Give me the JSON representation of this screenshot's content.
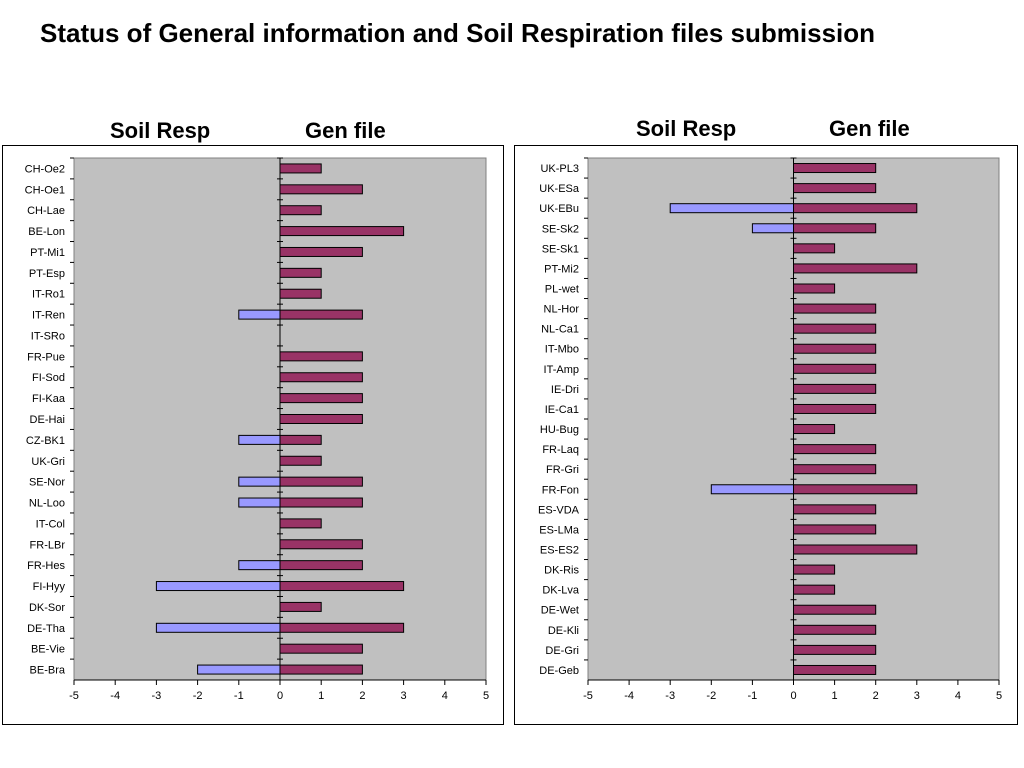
{
  "title": "Status of General information and Soil Respiration files submission",
  "colors": {
    "soil_resp": "#9999ff",
    "gen_file": "#993366",
    "plot_bg": "#c0c0c0"
  },
  "chart_data": [
    {
      "type": "bar",
      "orientation": "horizontal",
      "headers": [
        "Soil Resp",
        "Gen file"
      ],
      "xlim": [
        -5,
        5
      ],
      "xticks": [
        -5,
        -4,
        -3,
        -2,
        -1,
        0,
        1,
        2,
        3,
        4,
        5
      ],
      "categories": [
        "CH-Oe2",
        "CH-Oe1",
        "CH-Lae",
        "BE-Lon",
        "PT-Mi1",
        "PT-Esp",
        "IT-Ro1",
        "IT-Ren",
        "IT-SRo",
        "FR-Pue",
        "FI-Sod",
        "FI-Kaa",
        "DE-Hai",
        "CZ-BK1",
        "UK-Gri",
        "SE-Nor",
        "NL-Loo",
        "IT-Col",
        "FR-LBr",
        "FR-Hes",
        "FI-Hyy",
        "DK-Sor",
        "DE-Tha",
        "BE-Vie",
        "BE-Bra"
      ],
      "series": [
        {
          "key": "soil_resp",
          "values": [
            0,
            0,
            0,
            0,
            0,
            0,
            0,
            -1,
            0,
            0,
            0,
            0,
            0,
            -1,
            0,
            -1,
            -1,
            0,
            0,
            -1,
            -3,
            0,
            -3,
            0,
            -2
          ]
        },
        {
          "key": "gen_file",
          "values": [
            1,
            2,
            1,
            3,
            2,
            1,
            1,
            2,
            0,
            2,
            2,
            2,
            2,
            1,
            1,
            2,
            2,
            1,
            2,
            2,
            3,
            1,
            3,
            2,
            2
          ]
        }
      ]
    },
    {
      "type": "bar",
      "orientation": "horizontal",
      "headers": [
        "Soil Resp",
        "Gen file"
      ],
      "xlim": [
        -5,
        5
      ],
      "xticks": [
        -5,
        -4,
        -3,
        -2,
        -1,
        0,
        1,
        2,
        3,
        4,
        5
      ],
      "categories": [
        "UK-PL3",
        "UK-ESa",
        "UK-EBu",
        "SE-Sk2",
        "SE-Sk1",
        "PT-Mi2",
        "PL-wet",
        "NL-Hor",
        "NL-Ca1",
        "IT-Mbo",
        "IT-Amp",
        "IE-Dri",
        "IE-Ca1",
        "HU-Bug",
        "FR-Laq",
        "FR-Gri",
        "FR-Fon",
        "ES-VDA",
        "ES-LMa",
        "ES-ES2",
        "DK-Ris",
        "DK-Lva",
        "DE-Wet",
        "DE-Kli",
        "DE-Gri",
        "DE-Geb"
      ],
      "series": [
        {
          "key": "soil_resp",
          "values": [
            0,
            0,
            -3,
            -1,
            0,
            0,
            0,
            0,
            0,
            0,
            0,
            0,
            0,
            0,
            0,
            0,
            -2,
            0,
            0,
            0,
            0,
            0,
            0,
            0,
            0,
            0
          ]
        },
        {
          "key": "gen_file",
          "values": [
            2,
            2,
            3,
            2,
            1,
            3,
            1,
            2,
            2,
            2,
            2,
            2,
            2,
            1,
            2,
            2,
            3,
            2,
            2,
            3,
            1,
            1,
            2,
            2,
            2,
            2
          ]
        }
      ]
    }
  ]
}
